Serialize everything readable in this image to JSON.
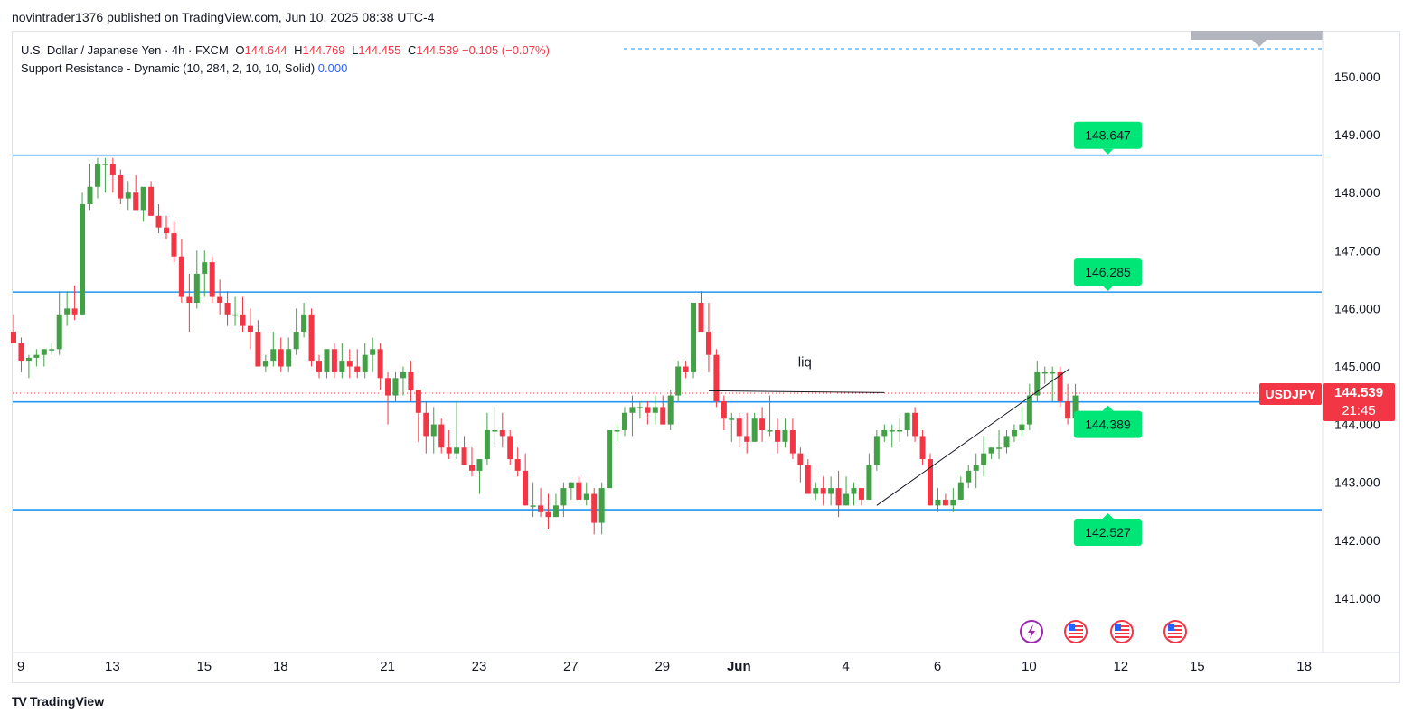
{
  "header": {
    "published_line": "novintrader1376 published on TradingView.com, Jun 10, 2025 08:38 UTC-4"
  },
  "legend": {
    "symbol": "U.S. Dollar / Japanese Yen · 4h · FXCM",
    "o_label": "O",
    "o_value": "144.644",
    "h_label": "H",
    "h_value": "144.769",
    "l_label": "L",
    "l_value": "144.455",
    "c_label": "C",
    "c_value": "144.539",
    "change": "−0.105 (−0.07%)",
    "indicator": "Support Resistance - Dynamic (10, 284, 2, 10, 10, Solid)",
    "indicator_value": "0.000"
  },
  "badges": {
    "ticker": "USDJPY",
    "price": "144.539",
    "countdown": "21:45"
  },
  "footer": {
    "brand": "TradingView"
  },
  "colors": {
    "up": "#4caf50",
    "up_body": "#43a047",
    "down": "#f23645",
    "level_line": "#2196f3",
    "level_label_bg": "#00e676",
    "trendline": "#131722"
  },
  "chart_data": {
    "type": "candlestick",
    "title": "",
    "ylim": [
      140.0,
      150.6
    ],
    "y_ticks": [
      141.0,
      142.0,
      143.0,
      144.0,
      145.0,
      146.0,
      147.0,
      148.0,
      149.0,
      150.0
    ],
    "y_tick_labels": [
      "141.000",
      "142.000",
      "143.000",
      "144.000",
      "145.000",
      "146.000",
      "147.000",
      "148.000",
      "149.000",
      "150.000"
    ],
    "x_ticks": [
      {
        "label": "9",
        "index": 0
      },
      {
        "label": "13",
        "index": 12
      },
      {
        "label": "15",
        "index": 24
      },
      {
        "label": "18",
        "index": 34
      },
      {
        "label": "21",
        "index": 48
      },
      {
        "label": "23",
        "index": 60
      },
      {
        "label": "27",
        "index": 72
      },
      {
        "label": "29",
        "index": 84
      },
      {
        "label": "Jun",
        "index": 94
      },
      {
        "label": "4",
        "index": 108
      },
      {
        "label": "6",
        "index": 120
      },
      {
        "label": "10",
        "index": 132
      },
      {
        "label": "12",
        "index": 144
      },
      {
        "label": "15",
        "index": 154
      },
      {
        "label": "18",
        "index": 168
      }
    ],
    "levels": [
      {
        "value": 148.647,
        "label": "148.647"
      },
      {
        "value": 146.285,
        "label": "146.285"
      },
      {
        "value": 144.389,
        "label": "144.389"
      },
      {
        "value": 142.527,
        "label": "142.527"
      }
    ],
    "annotations": [
      {
        "text": "liq",
        "x_index": 104,
        "y": 145.0
      }
    ],
    "liq_line": {
      "x_start": 91,
      "x_end": 114,
      "y_start": 144.58,
      "y_end": 144.55
    },
    "trendline": {
      "x_start": 113,
      "y_start": 142.6,
      "x_end": 138,
      "y_end": 144.97
    },
    "current_price": 144.539,
    "candles": [
      [
        145.6,
        145.9,
        145.5,
        145.4
      ],
      [
        145.4,
        145.5,
        144.9,
        145.1
      ],
      [
        145.1,
        145.2,
        144.8,
        145.15
      ],
      [
        145.15,
        145.3,
        145.0,
        145.2
      ],
      [
        145.2,
        145.3,
        145.0,
        145.3
      ],
      [
        145.3,
        145.4,
        145.2,
        145.3
      ],
      [
        145.3,
        146.3,
        145.2,
        145.9
      ],
      [
        145.9,
        146.3,
        145.7,
        146.0
      ],
      [
        146.0,
        146.4,
        145.8,
        145.9
      ],
      [
        145.9,
        148.0,
        145.9,
        147.8
      ],
      [
        147.8,
        148.5,
        147.7,
        148.1
      ],
      [
        148.1,
        148.6,
        147.9,
        148.5
      ],
      [
        148.5,
        148.6,
        148.0,
        148.5
      ],
      [
        148.5,
        148.6,
        148.0,
        148.3
      ],
      [
        148.3,
        148.4,
        147.8,
        147.9
      ],
      [
        147.9,
        148.2,
        147.7,
        148.0
      ],
      [
        148.0,
        148.3,
        147.8,
        147.7
      ],
      [
        147.7,
        148.0,
        147.5,
        148.1
      ],
      [
        148.1,
        148.2,
        147.6,
        147.6
      ],
      [
        147.6,
        147.8,
        147.3,
        147.4
      ],
      [
        147.4,
        147.6,
        147.2,
        147.3
      ],
      [
        147.3,
        147.5,
        146.8,
        146.9
      ],
      [
        146.9,
        147.2,
        146.1,
        146.2
      ],
      [
        146.2,
        146.6,
        145.6,
        146.1
      ],
      [
        146.1,
        147.0,
        146.0,
        146.6
      ],
      [
        146.6,
        147.0,
        146.2,
        146.8
      ],
      [
        146.8,
        146.9,
        146.1,
        146.2
      ],
      [
        146.2,
        146.5,
        145.9,
        146.1
      ],
      [
        146.1,
        146.3,
        145.7,
        145.9
      ],
      [
        145.9,
        146.2,
        145.7,
        145.9
      ],
      [
        145.9,
        146.2,
        145.6,
        145.7
      ],
      [
        145.7,
        146.0,
        145.3,
        145.6
      ],
      [
        145.6,
        145.8,
        145.0,
        145.0
      ],
      [
        145.0,
        145.2,
        144.9,
        145.1
      ],
      [
        145.1,
        145.6,
        145.0,
        145.3
      ],
      [
        145.3,
        145.5,
        144.9,
        145.0
      ],
      [
        145.0,
        145.5,
        144.9,
        145.3
      ],
      [
        145.3,
        146.0,
        145.2,
        145.6
      ],
      [
        145.6,
        146.1,
        145.5,
        145.9
      ],
      [
        145.9,
        146.0,
        145.0,
        145.1
      ],
      [
        145.1,
        145.2,
        144.8,
        144.9
      ],
      [
        144.9,
        145.3,
        144.8,
        145.3
      ],
      [
        145.3,
        145.4,
        144.8,
        144.9
      ],
      [
        144.9,
        145.4,
        144.8,
        145.1
      ],
      [
        145.1,
        145.3,
        144.8,
        145.0
      ],
      [
        145.0,
        145.3,
        144.8,
        144.9
      ],
      [
        144.9,
        145.4,
        144.8,
        145.2
      ],
      [
        145.2,
        145.5,
        144.9,
        145.3
      ],
      [
        145.3,
        145.4,
        144.6,
        144.8
      ],
      [
        144.8,
        144.9,
        144.0,
        144.5
      ],
      [
        144.5,
        144.9,
        144.4,
        144.8
      ],
      [
        144.8,
        145.0,
        144.5,
        144.9
      ],
      [
        144.9,
        145.1,
        144.4,
        144.6
      ],
      [
        144.6,
        144.6,
        143.7,
        144.2
      ],
      [
        144.2,
        144.4,
        143.5,
        143.8
      ],
      [
        143.8,
        144.3,
        143.5,
        144.0
      ],
      [
        144.0,
        144.1,
        143.5,
        143.6
      ],
      [
        143.6,
        143.9,
        143.4,
        143.5
      ],
      [
        143.5,
        144.4,
        143.4,
        143.6
      ],
      [
        143.6,
        143.8,
        143.3,
        143.3
      ],
      [
        143.3,
        143.6,
        143.1,
        143.2
      ],
      [
        143.2,
        143.4,
        142.8,
        143.4
      ],
      [
        143.4,
        144.2,
        143.3,
        143.9
      ],
      [
        143.9,
        144.3,
        143.6,
        143.9
      ],
      [
        143.9,
        144.2,
        143.6,
        143.8
      ],
      [
        143.8,
        143.9,
        143.3,
        143.4
      ],
      [
        143.4,
        143.6,
        143.1,
        143.2
      ],
      [
        143.2,
        143.5,
        142.6,
        142.6
      ],
      [
        142.6,
        143.0,
        142.4,
        142.6
      ],
      [
        142.6,
        142.9,
        142.4,
        142.5
      ],
      [
        142.5,
        142.8,
        142.2,
        142.4
      ],
      [
        142.4,
        142.8,
        142.4,
        142.6
      ],
      [
        142.6,
        143.0,
        142.4,
        142.9
      ],
      [
        142.9,
        143.0,
        142.7,
        143.0
      ],
      [
        143.0,
        143.1,
        142.7,
        142.7
      ],
      [
        142.7,
        143.0,
        142.6,
        142.8
      ],
      [
        142.8,
        142.9,
        142.1,
        142.3
      ],
      [
        142.3,
        143.0,
        142.1,
        142.9
      ],
      [
        142.9,
        143.9,
        142.9,
        143.9
      ],
      [
        143.9,
        144.0,
        143.7,
        143.9
      ],
      [
        143.9,
        144.3,
        143.8,
        144.2
      ],
      [
        144.2,
        144.5,
        143.8,
        144.3
      ],
      [
        144.3,
        144.4,
        144.1,
        144.3
      ],
      [
        144.3,
        144.4,
        144.0,
        144.2
      ],
      [
        144.2,
        144.5,
        144.0,
        144.3
      ],
      [
        144.3,
        144.5,
        144.0,
        144.0
      ],
      [
        144.0,
        144.6,
        143.9,
        144.5
      ],
      [
        144.5,
        145.1,
        144.4,
        145.0
      ],
      [
        145.0,
        145.1,
        144.8,
        144.9
      ],
      [
        144.9,
        146.1,
        144.8,
        146.1
      ],
      [
        146.1,
        146.3,
        145.6,
        145.6
      ],
      [
        145.6,
        146.1,
        144.9,
        145.2
      ],
      [
        145.2,
        145.3,
        144.3,
        144.4
      ],
      [
        144.4,
        144.5,
        143.9,
        144.1
      ],
      [
        144.1,
        144.2,
        143.7,
        144.1
      ],
      [
        144.1,
        144.2,
        143.6,
        143.8
      ],
      [
        143.8,
        144.2,
        143.5,
        143.7
      ],
      [
        143.7,
        144.2,
        143.7,
        144.1
      ],
      [
        144.1,
        144.3,
        143.7,
        143.9
      ],
      [
        143.9,
        144.5,
        143.8,
        143.9
      ],
      [
        143.9,
        144.1,
        143.5,
        143.7
      ],
      [
        143.7,
        144.1,
        143.6,
        143.9
      ],
      [
        143.9,
        144.1,
        143.4,
        143.5
      ],
      [
        143.5,
        143.6,
        143.0,
        143.3
      ],
      [
        143.3,
        143.4,
        142.8,
        142.8
      ],
      [
        142.8,
        143.0,
        142.7,
        142.9
      ],
      [
        142.9,
        143.1,
        142.6,
        142.8
      ],
      [
        142.8,
        143.1,
        142.6,
        142.9
      ],
      [
        142.9,
        143.2,
        142.4,
        142.6
      ],
      [
        142.6,
        143.1,
        142.6,
        142.8
      ],
      [
        142.8,
        143.0,
        142.6,
        142.9
      ],
      [
        142.9,
        142.9,
        142.6,
        142.7
      ],
      [
        142.7,
        143.5,
        142.7,
        143.3
      ],
      [
        143.3,
        143.9,
        143.2,
        143.8
      ],
      [
        143.8,
        144.0,
        143.7,
        143.9
      ],
      [
        143.9,
        144.0,
        143.6,
        143.9
      ],
      [
        143.9,
        144.1,
        143.7,
        143.9
      ],
      [
        143.9,
        144.2,
        143.8,
        144.2
      ],
      [
        144.2,
        144.3,
        143.7,
        143.8
      ],
      [
        143.8,
        143.9,
        143.3,
        143.4
      ],
      [
        143.4,
        143.5,
        142.6,
        142.6
      ],
      [
        142.6,
        142.9,
        142.5,
        142.7
      ],
      [
        142.7,
        142.8,
        142.6,
        142.6
      ],
      [
        142.6,
        142.9,
        142.5,
        142.7
      ],
      [
        142.7,
        143.1,
        142.7,
        143.0
      ],
      [
        143.0,
        143.3,
        142.9,
        143.2
      ],
      [
        143.2,
        143.5,
        142.9,
        143.3
      ],
      [
        143.3,
        143.8,
        143.1,
        143.5
      ],
      [
        143.5,
        143.6,
        143.4,
        143.6
      ],
      [
        143.6,
        143.9,
        143.4,
        143.6
      ],
      [
        143.6,
        143.9,
        143.5,
        143.8
      ],
      [
        143.8,
        144.0,
        143.7,
        143.9
      ],
      [
        143.9,
        144.3,
        143.8,
        144.0
      ],
      [
        144.0,
        144.7,
        143.9,
        144.5
      ],
      [
        144.5,
        145.1,
        144.4,
        144.9
      ],
      [
        144.9,
        145.0,
        144.7,
        144.9
      ],
      [
        144.9,
        145.0,
        144.4,
        144.9
      ],
      [
        144.9,
        145.0,
        144.3,
        144.4
      ],
      [
        144.4,
        144.7,
        144.0,
        144.1
      ],
      [
        144.1,
        144.7,
        144.0,
        144.5
      ]
    ]
  }
}
